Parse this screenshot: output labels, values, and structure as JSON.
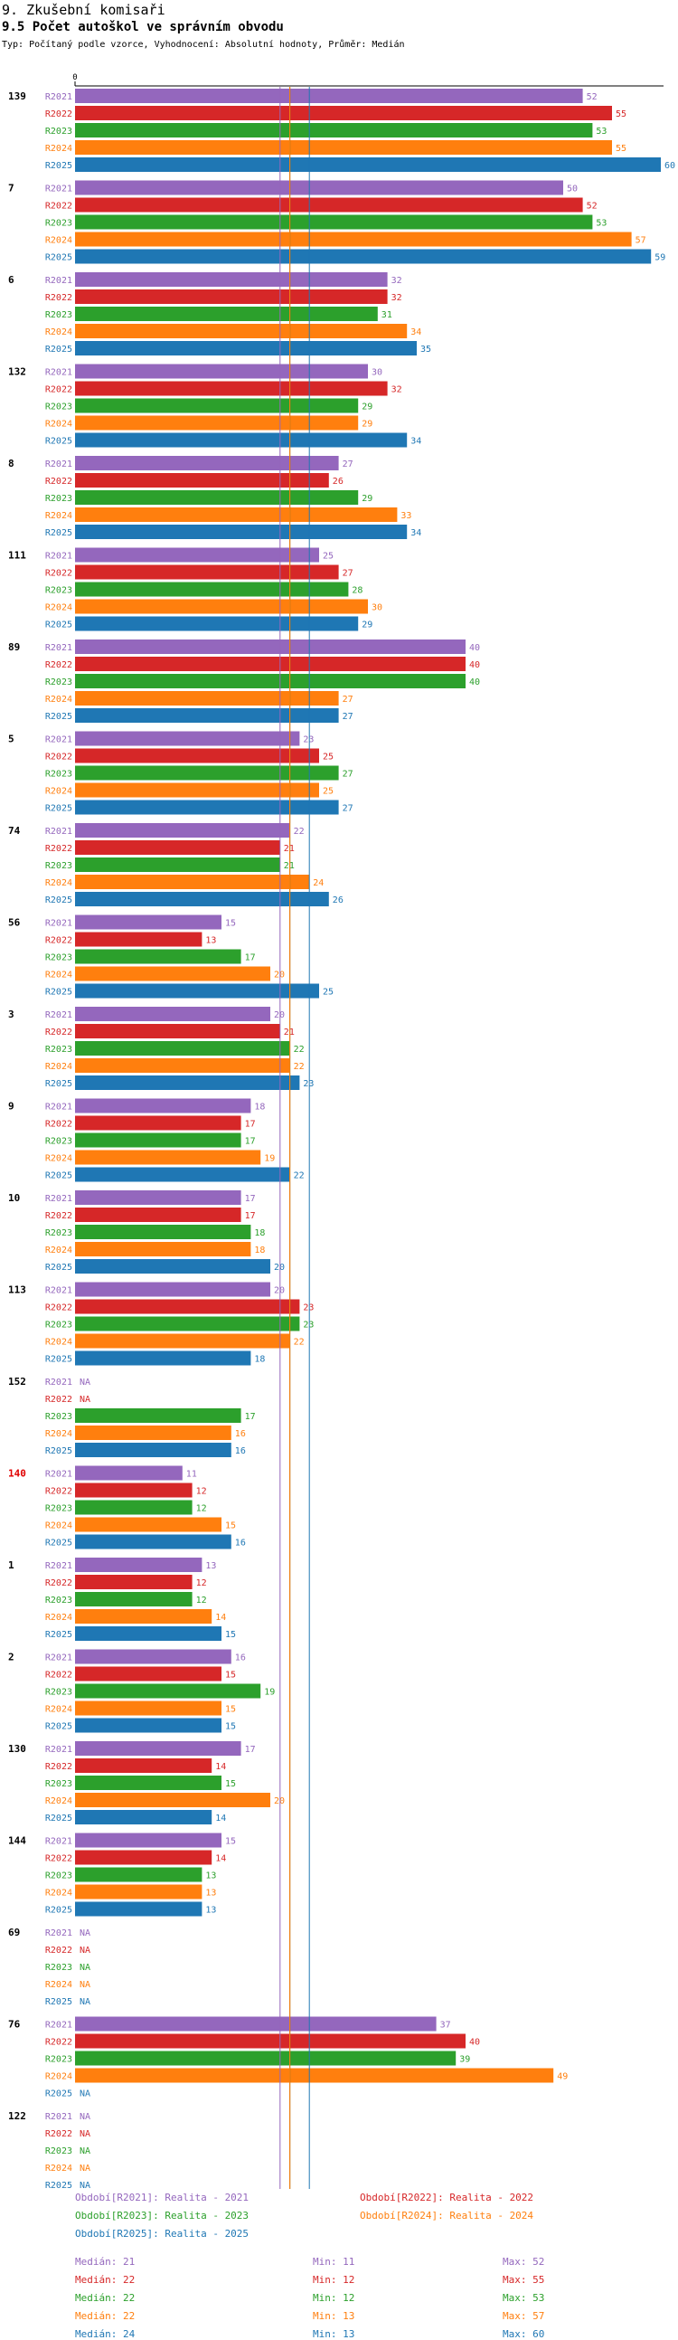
{
  "header": {
    "section_title": "9. Zkušební komisaři",
    "chart_title": "9.5 Počet autoškol ve správním obvodu",
    "subtitle": "Typ: Počítaný podle vzorce, Vyhodnocení: Absolutní hodnoty, Průměr: Medián"
  },
  "colors": {
    "R2021": "#9467bd",
    "R2022": "#d62728",
    "R2023": "#2ca02c",
    "R2024": "#ff7f0e",
    "R2025": "#1f77b4",
    "highlight_group": "#e00000"
  },
  "chart_data": {
    "type": "bar",
    "orientation": "horizontal",
    "title": "9.5 Počet autoškol ve správním obvodu",
    "xlim": [
      0,
      60
    ],
    "axis_tick_label": "0",
    "series_names": [
      "R2021",
      "R2022",
      "R2023",
      "R2024",
      "R2025"
    ],
    "na_label": "NA",
    "groups": [
      {
        "id": "139",
        "highlight": false,
        "values": [
          52,
          55,
          53,
          55,
          60
        ]
      },
      {
        "id": "7",
        "highlight": false,
        "values": [
          50,
          52,
          53,
          57,
          59
        ]
      },
      {
        "id": "6",
        "highlight": false,
        "values": [
          32,
          32,
          31,
          34,
          35
        ]
      },
      {
        "id": "132",
        "highlight": false,
        "values": [
          30,
          32,
          29,
          29,
          34
        ]
      },
      {
        "id": "8",
        "highlight": false,
        "values": [
          27,
          26,
          29,
          33,
          34
        ]
      },
      {
        "id": "111",
        "highlight": false,
        "values": [
          25,
          27,
          28,
          30,
          29
        ]
      },
      {
        "id": "89",
        "highlight": false,
        "values": [
          40,
          40,
          40,
          27,
          27
        ]
      },
      {
        "id": "5",
        "highlight": false,
        "values": [
          23,
          25,
          27,
          25,
          27
        ]
      },
      {
        "id": "74",
        "highlight": false,
        "values": [
          22,
          21,
          21,
          24,
          26
        ]
      },
      {
        "id": "56",
        "highlight": false,
        "values": [
          15,
          13,
          17,
          20,
          25
        ]
      },
      {
        "id": "3",
        "highlight": false,
        "values": [
          20,
          21,
          22,
          22,
          23
        ]
      },
      {
        "id": "9",
        "highlight": false,
        "values": [
          18,
          17,
          17,
          19,
          22
        ]
      },
      {
        "id": "10",
        "highlight": false,
        "values": [
          17,
          17,
          18,
          18,
          20
        ]
      },
      {
        "id": "113",
        "highlight": false,
        "values": [
          20,
          23,
          23,
          22,
          18
        ]
      },
      {
        "id": "152",
        "highlight": false,
        "values": [
          null,
          null,
          17,
          16,
          16
        ]
      },
      {
        "id": "140",
        "highlight": true,
        "values": [
          11,
          12,
          12,
          15,
          16
        ]
      },
      {
        "id": "1",
        "highlight": false,
        "values": [
          13,
          12,
          12,
          14,
          15
        ]
      },
      {
        "id": "2",
        "highlight": false,
        "values": [
          16,
          15,
          19,
          15,
          15
        ]
      },
      {
        "id": "130",
        "highlight": false,
        "values": [
          17,
          14,
          15,
          20,
          14
        ]
      },
      {
        "id": "144",
        "highlight": false,
        "values": [
          15,
          14,
          13,
          13,
          13
        ]
      },
      {
        "id": "69",
        "highlight": false,
        "values": [
          null,
          null,
          null,
          null,
          null
        ]
      },
      {
        "id": "76",
        "highlight": false,
        "values": [
          37,
          40,
          39,
          49,
          null
        ]
      },
      {
        "id": "122",
        "highlight": false,
        "values": [
          null,
          null,
          null,
          null,
          null
        ]
      }
    ],
    "reference_lines": [
      {
        "series": "R2021",
        "value": 21
      },
      {
        "series": "R2022",
        "value": 22
      },
      {
        "series": "R2023",
        "value": 22
      },
      {
        "series": "R2024",
        "value": 22
      },
      {
        "series": "R2025",
        "value": 24
      }
    ]
  },
  "legend": {
    "period_entries": [
      {
        "series": "R2021",
        "text": "Období[R2021]: Realita - 2021"
      },
      {
        "series": "R2022",
        "text": "Období[R2022]: Realita - 2022"
      },
      {
        "series": "R2023",
        "text": "Období[R2023]: Realita - 2023"
      },
      {
        "series": "R2024",
        "text": "Období[R2024]: Realita - 2024"
      },
      {
        "series": "R2025",
        "text": "Období[R2025]: Realita - 2025"
      }
    ],
    "stats": [
      {
        "series": "R2021",
        "median": "Medián: 21",
        "min": "Min: 11",
        "max": "Max: 52"
      },
      {
        "series": "R2022",
        "median": "Medián: 22",
        "min": "Min: 12",
        "max": "Max: 55"
      },
      {
        "series": "R2023",
        "median": "Medián: 22",
        "min": "Min: 12",
        "max": "Max: 53"
      },
      {
        "series": "R2024",
        "median": "Medián: 22",
        "min": "Min: 13",
        "max": "Max: 57"
      },
      {
        "series": "R2025",
        "median": "Medián: 24",
        "min": "Min: 13",
        "max": "Max: 60"
      }
    ]
  }
}
